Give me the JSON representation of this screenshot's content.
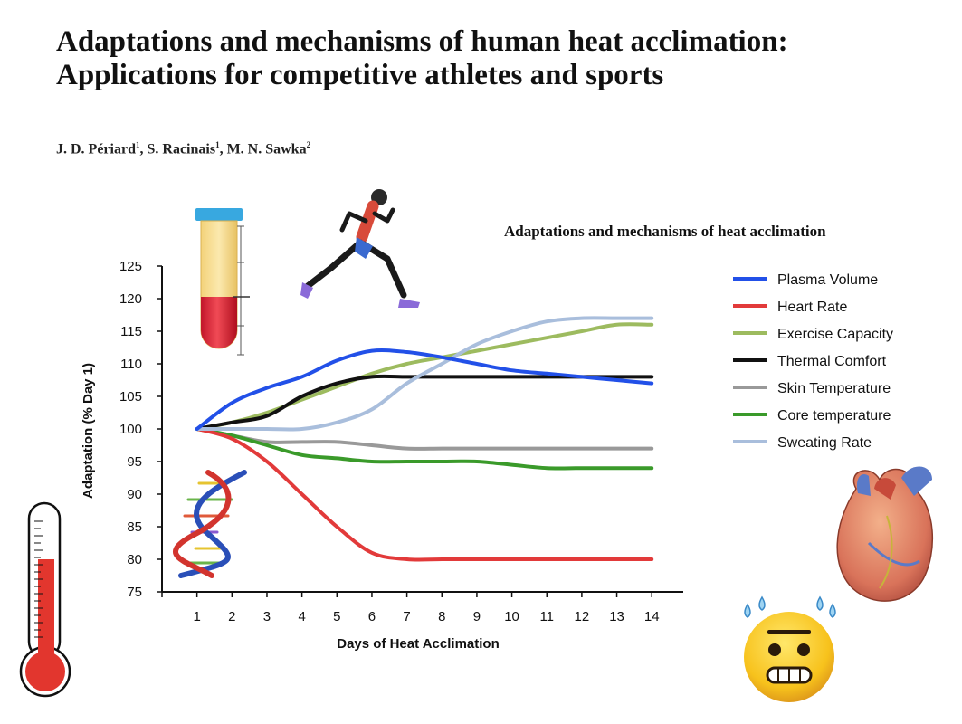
{
  "paper": {
    "title_line1": "Adaptations and mechanisms of human heat acclimation:",
    "title_line2": "Applications for competitive athletes and sports",
    "authors": [
      {
        "name": "J. D. Périard",
        "aff": "1"
      },
      {
        "name": "S. Racinais",
        "aff": "1"
      },
      {
        "name": "M. N. Sawka",
        "aff": "2"
      }
    ]
  },
  "colors": {
    "plasma_volume": "#2250e8",
    "heart_rate": "#e23a3a",
    "exercise_capacity": "#9dbb5f",
    "thermal_comfort": "#111111",
    "skin_temperature": "#999999",
    "core_temperature": "#3a9a2a",
    "sweating_rate": "#a9bedc"
  },
  "chart_data": {
    "type": "line",
    "title": "Adaptations and mechanisms of heat acclimation",
    "xlabel": "Days of Heat Acclimation",
    "ylabel": "Adaptation (% Day 1)",
    "x": [
      1,
      2,
      3,
      4,
      5,
      6,
      7,
      8,
      9,
      10,
      11,
      12,
      13,
      14
    ],
    "xlim": [
      0,
      14.9
    ],
    "ylim": [
      75,
      125
    ],
    "yticks": [
      75,
      80,
      85,
      90,
      95,
      100,
      105,
      110,
      115,
      120,
      125
    ],
    "grid": false,
    "legend_position": "right",
    "series": [
      {
        "name": "Plasma Volume",
        "color": "#2250e8",
        "values": [
          100,
          104,
          106.3,
          108,
          110.5,
          112,
          111.8,
          111,
          110,
          109,
          108.5,
          108,
          107.5,
          107
        ]
      },
      {
        "name": "Heart Rate",
        "color": "#e23a3a",
        "values": [
          100,
          98.5,
          95,
          90,
          85,
          81,
          80,
          80,
          80,
          80,
          80,
          80,
          80,
          80
        ]
      },
      {
        "name": "Exercise Capacity",
        "color": "#9dbb5f",
        "values": [
          100,
          101,
          102.5,
          104.5,
          106.5,
          108.5,
          110,
          111,
          112,
          113,
          114,
          115,
          116,
          116
        ]
      },
      {
        "name": "Thermal Comfort",
        "color": "#111111",
        "values": [
          100,
          101,
          102,
          105,
          107,
          108,
          108,
          108,
          108,
          108,
          108,
          108,
          108,
          108
        ]
      },
      {
        "name": "Skin Temperature",
        "color": "#999999",
        "values": [
          100,
          99,
          98,
          98,
          98,
          97.5,
          97,
          97,
          97,
          97,
          97,
          97,
          97,
          97
        ]
      },
      {
        "name": "Core temperature",
        "color": "#3a9a2a",
        "values": [
          100,
          99,
          97.5,
          96,
          95.5,
          95,
          95,
          95,
          95,
          94.5,
          94,
          94,
          94,
          94
        ]
      },
      {
        "name": "Sweating Rate",
        "color": "#a9bedc",
        "values": [
          100,
          100,
          100,
          100,
          101,
          103,
          107,
          110,
          113,
          115,
          116.5,
          117,
          117,
          117
        ]
      }
    ]
  }
}
